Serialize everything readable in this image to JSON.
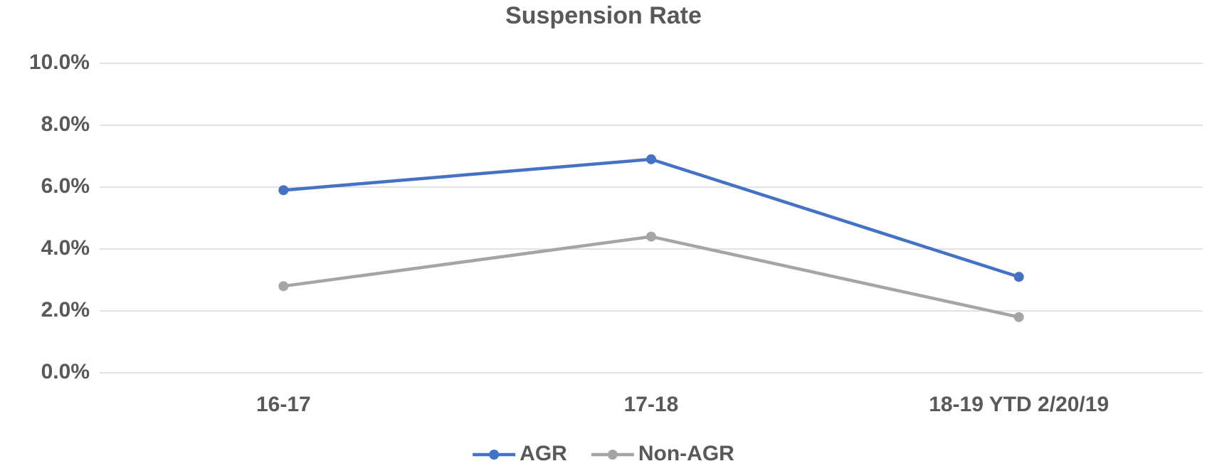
{
  "chart_data": {
    "type": "line",
    "title": "Suspension Rate",
    "categories": [
      "16-17",
      "17-18",
      "18-19 YTD 2/20/19"
    ],
    "series": [
      {
        "name": "AGR",
        "color": "#4472c4",
        "values": [
          5.9,
          6.9,
          3.1
        ]
      },
      {
        "name": "Non-AGR",
        "color": "#a5a5a5",
        "values": [
          2.8,
          4.4,
          1.8
        ]
      }
    ],
    "ylim": [
      0,
      10
    ],
    "yticks": [
      {
        "value": 0,
        "label": "0.0%"
      },
      {
        "value": 2,
        "label": "2.0%"
      },
      {
        "value": 4,
        "label": "4.0%"
      },
      {
        "value": 6,
        "label": "6.0%"
      },
      {
        "value": 8,
        "label": "8.0%"
      },
      {
        "value": 10,
        "label": "10.0%"
      }
    ],
    "grid": true,
    "legend": "bottom"
  }
}
